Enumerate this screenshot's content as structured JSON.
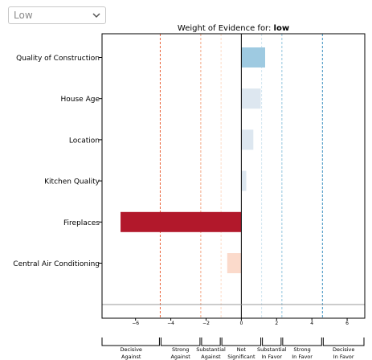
{
  "dropdown": {
    "selected": "Low",
    "icon": "chevron-down-icon"
  },
  "chart_data": {
    "type": "bar",
    "orientation": "horizontal",
    "title_prefix": "Weight of Evidence for: ",
    "title_emphasis": "low",
    "categories": [
      "Quality of Construction",
      "House Age",
      "Location",
      "Kitchen Quality",
      "Fireplaces",
      "Central Air Conditioning"
    ],
    "values": [
      1.35,
      1.1,
      0.68,
      0.28,
      -6.85,
      -0.8
    ],
    "xlim": [
      -7.9,
      7.0
    ],
    "xticks": [
      -6,
      -4,
      -2,
      0,
      2,
      4,
      6
    ],
    "xtick_labels": [
      "−6",
      "−4",
      "−2",
      "0",
      "2",
      "4",
      "6"
    ],
    "reference_lines": [
      {
        "x": -4.6,
        "color": "#e8643c",
        "style": "dashed"
      },
      {
        "x": -2.3,
        "color": "#f4a582",
        "style": "dashed"
      },
      {
        "x": -1.15,
        "color": "#fddbc7",
        "style": "dashed"
      },
      {
        "x": 1.15,
        "color": "#d1e5f0",
        "style": "dashed"
      },
      {
        "x": 2.3,
        "color": "#92c5de",
        "style": "dashed"
      },
      {
        "x": 4.6,
        "color": "#4393c3",
        "style": "dashed"
      }
    ],
    "evidence_bands": [
      {
        "line1": "Decisive",
        "line2": "Against",
        "from": -7.9,
        "to": -4.6
      },
      {
        "line1": "Strong",
        "line2": "Against",
        "from": -4.6,
        "to": -2.3
      },
      {
        "line1": "Substantial",
        "line2": "Against",
        "from": -2.3,
        "to": -1.15
      },
      {
        "line1": "Not",
        "line2": "Significant",
        "from": -1.15,
        "to": 1.15
      },
      {
        "line1": "Substantial",
        "line2": "In Favor",
        "from": 1.15,
        "to": 2.3
      },
      {
        "line1": "Strong",
        "line2": "In Favor",
        "from": 2.3,
        "to": 4.6
      },
      {
        "line1": "Decisive",
        "line2": "In Favor",
        "from": 4.6,
        "to": 7.0
      }
    ],
    "colors": {
      "strong_negative": "#b2182b",
      "weak_negative": "#fbdacb",
      "strong_positive": "#9ecae1",
      "weak_positive": "#dde7f0",
      "zero_line": "#000000"
    }
  }
}
